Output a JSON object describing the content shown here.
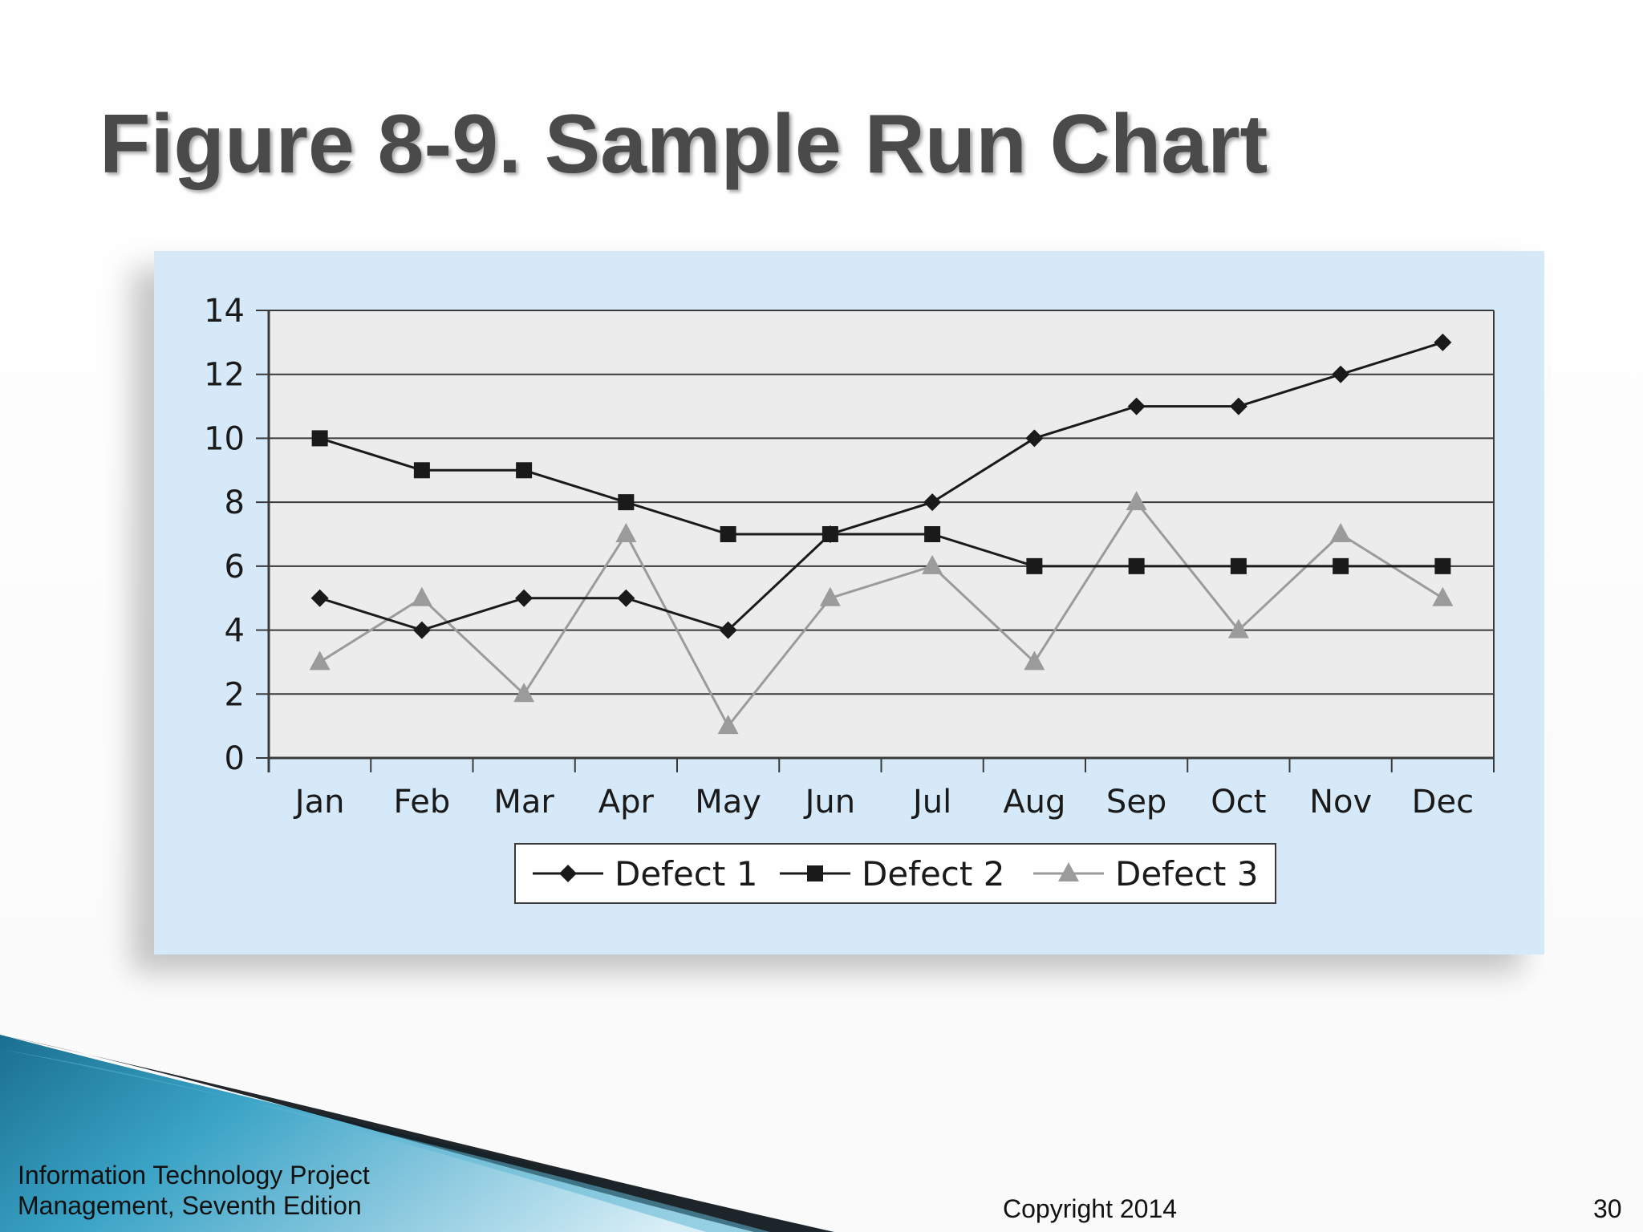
{
  "slide": {
    "title": "Figure 8-9. Sample Run Chart",
    "footer_book": "Information Technology Project Management, Seventh Edition",
    "footer_copyright": "Copyright 2014",
    "page_number": "30"
  },
  "colors": {
    "panel_background": "#d6e9f8",
    "plot_background": "#ececec",
    "defect1": "#1a1a1a",
    "defect2": "#1a1a1a",
    "defect3": "#9b9b9b"
  },
  "chart_data": {
    "type": "line",
    "title": "",
    "xlabel": "",
    "ylabel": "",
    "categories": [
      "Jan",
      "Feb",
      "Mar",
      "Apr",
      "May",
      "Jun",
      "Jul",
      "Aug",
      "Sep",
      "Oct",
      "Nov",
      "Dec"
    ],
    "ylim": [
      0,
      14
    ],
    "yticks": [
      0,
      2,
      4,
      6,
      8,
      10,
      12,
      14
    ],
    "grid": "horizontal",
    "legend_position": "bottom",
    "series": [
      {
        "name": "Defect 1",
        "marker": "diamond",
        "color": "#1a1a1a",
        "values": [
          5,
          4,
          5,
          5,
          4,
          7,
          8,
          10,
          11,
          11,
          12,
          13
        ]
      },
      {
        "name": "Defect 2",
        "marker": "square",
        "color": "#1a1a1a",
        "values": [
          10,
          9,
          9,
          8,
          7,
          7,
          7,
          6,
          6,
          6,
          6,
          6
        ]
      },
      {
        "name": "Defect 3",
        "marker": "triangle",
        "color": "#9b9b9b",
        "values": [
          3,
          5,
          2,
          7,
          1,
          5,
          6,
          3,
          8,
          4,
          7,
          5
        ]
      }
    ]
  }
}
